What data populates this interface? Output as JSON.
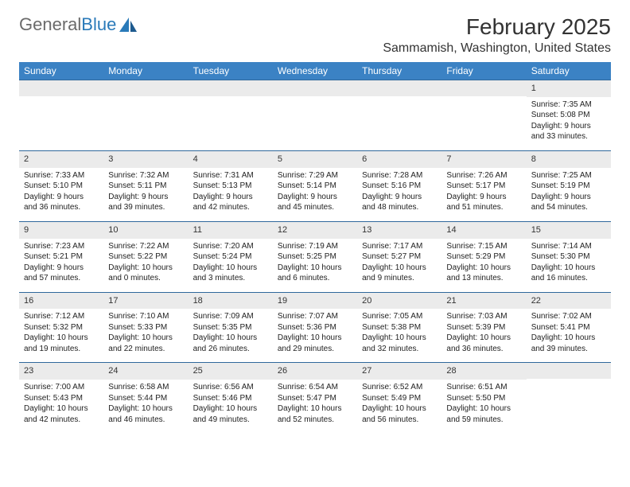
{
  "logo": {
    "word1": "General",
    "word2": "Blue"
  },
  "header": {
    "month_title": "February 2025",
    "location": "Sammamish, Washington, United States"
  },
  "colors": {
    "header_bg": "#3b82c4",
    "header_text": "#ffffff",
    "daynum_bg": "#ebebeb",
    "row_border": "#30689c",
    "logo_grey": "#6b6b6b",
    "logo_blue": "#2a7ab9",
    "text": "#222222"
  },
  "day_labels": [
    "Sunday",
    "Monday",
    "Tuesday",
    "Wednesday",
    "Thursday",
    "Friday",
    "Saturday"
  ],
  "weeks": [
    [
      {
        "n": "",
        "sunrise": "",
        "sunset": "",
        "daylight": ""
      },
      {
        "n": "",
        "sunrise": "",
        "sunset": "",
        "daylight": ""
      },
      {
        "n": "",
        "sunrise": "",
        "sunset": "",
        "daylight": ""
      },
      {
        "n": "",
        "sunrise": "",
        "sunset": "",
        "daylight": ""
      },
      {
        "n": "",
        "sunrise": "",
        "sunset": "",
        "daylight": ""
      },
      {
        "n": "",
        "sunrise": "",
        "sunset": "",
        "daylight": ""
      },
      {
        "n": "1",
        "sunrise": "Sunrise: 7:35 AM",
        "sunset": "Sunset: 5:08 PM",
        "daylight": "Daylight: 9 hours and 33 minutes."
      }
    ],
    [
      {
        "n": "2",
        "sunrise": "Sunrise: 7:33 AM",
        "sunset": "Sunset: 5:10 PM",
        "daylight": "Daylight: 9 hours and 36 minutes."
      },
      {
        "n": "3",
        "sunrise": "Sunrise: 7:32 AM",
        "sunset": "Sunset: 5:11 PM",
        "daylight": "Daylight: 9 hours and 39 minutes."
      },
      {
        "n": "4",
        "sunrise": "Sunrise: 7:31 AM",
        "sunset": "Sunset: 5:13 PM",
        "daylight": "Daylight: 9 hours and 42 minutes."
      },
      {
        "n": "5",
        "sunrise": "Sunrise: 7:29 AM",
        "sunset": "Sunset: 5:14 PM",
        "daylight": "Daylight: 9 hours and 45 minutes."
      },
      {
        "n": "6",
        "sunrise": "Sunrise: 7:28 AM",
        "sunset": "Sunset: 5:16 PM",
        "daylight": "Daylight: 9 hours and 48 minutes."
      },
      {
        "n": "7",
        "sunrise": "Sunrise: 7:26 AM",
        "sunset": "Sunset: 5:17 PM",
        "daylight": "Daylight: 9 hours and 51 minutes."
      },
      {
        "n": "8",
        "sunrise": "Sunrise: 7:25 AM",
        "sunset": "Sunset: 5:19 PM",
        "daylight": "Daylight: 9 hours and 54 minutes."
      }
    ],
    [
      {
        "n": "9",
        "sunrise": "Sunrise: 7:23 AM",
        "sunset": "Sunset: 5:21 PM",
        "daylight": "Daylight: 9 hours and 57 minutes."
      },
      {
        "n": "10",
        "sunrise": "Sunrise: 7:22 AM",
        "sunset": "Sunset: 5:22 PM",
        "daylight": "Daylight: 10 hours and 0 minutes."
      },
      {
        "n": "11",
        "sunrise": "Sunrise: 7:20 AM",
        "sunset": "Sunset: 5:24 PM",
        "daylight": "Daylight: 10 hours and 3 minutes."
      },
      {
        "n": "12",
        "sunrise": "Sunrise: 7:19 AM",
        "sunset": "Sunset: 5:25 PM",
        "daylight": "Daylight: 10 hours and 6 minutes."
      },
      {
        "n": "13",
        "sunrise": "Sunrise: 7:17 AM",
        "sunset": "Sunset: 5:27 PM",
        "daylight": "Daylight: 10 hours and 9 minutes."
      },
      {
        "n": "14",
        "sunrise": "Sunrise: 7:15 AM",
        "sunset": "Sunset: 5:29 PM",
        "daylight": "Daylight: 10 hours and 13 minutes."
      },
      {
        "n": "15",
        "sunrise": "Sunrise: 7:14 AM",
        "sunset": "Sunset: 5:30 PM",
        "daylight": "Daylight: 10 hours and 16 minutes."
      }
    ],
    [
      {
        "n": "16",
        "sunrise": "Sunrise: 7:12 AM",
        "sunset": "Sunset: 5:32 PM",
        "daylight": "Daylight: 10 hours and 19 minutes."
      },
      {
        "n": "17",
        "sunrise": "Sunrise: 7:10 AM",
        "sunset": "Sunset: 5:33 PM",
        "daylight": "Daylight: 10 hours and 22 minutes."
      },
      {
        "n": "18",
        "sunrise": "Sunrise: 7:09 AM",
        "sunset": "Sunset: 5:35 PM",
        "daylight": "Daylight: 10 hours and 26 minutes."
      },
      {
        "n": "19",
        "sunrise": "Sunrise: 7:07 AM",
        "sunset": "Sunset: 5:36 PM",
        "daylight": "Daylight: 10 hours and 29 minutes."
      },
      {
        "n": "20",
        "sunrise": "Sunrise: 7:05 AM",
        "sunset": "Sunset: 5:38 PM",
        "daylight": "Daylight: 10 hours and 32 minutes."
      },
      {
        "n": "21",
        "sunrise": "Sunrise: 7:03 AM",
        "sunset": "Sunset: 5:39 PM",
        "daylight": "Daylight: 10 hours and 36 minutes."
      },
      {
        "n": "22",
        "sunrise": "Sunrise: 7:02 AM",
        "sunset": "Sunset: 5:41 PM",
        "daylight": "Daylight: 10 hours and 39 minutes."
      }
    ],
    [
      {
        "n": "23",
        "sunrise": "Sunrise: 7:00 AM",
        "sunset": "Sunset: 5:43 PM",
        "daylight": "Daylight: 10 hours and 42 minutes."
      },
      {
        "n": "24",
        "sunrise": "Sunrise: 6:58 AM",
        "sunset": "Sunset: 5:44 PM",
        "daylight": "Daylight: 10 hours and 46 minutes."
      },
      {
        "n": "25",
        "sunrise": "Sunrise: 6:56 AM",
        "sunset": "Sunset: 5:46 PM",
        "daylight": "Daylight: 10 hours and 49 minutes."
      },
      {
        "n": "26",
        "sunrise": "Sunrise: 6:54 AM",
        "sunset": "Sunset: 5:47 PM",
        "daylight": "Daylight: 10 hours and 52 minutes."
      },
      {
        "n": "27",
        "sunrise": "Sunrise: 6:52 AM",
        "sunset": "Sunset: 5:49 PM",
        "daylight": "Daylight: 10 hours and 56 minutes."
      },
      {
        "n": "28",
        "sunrise": "Sunrise: 6:51 AM",
        "sunset": "Sunset: 5:50 PM",
        "daylight": "Daylight: 10 hours and 59 minutes."
      },
      {
        "n": "",
        "sunrise": "",
        "sunset": "",
        "daylight": ""
      }
    ]
  ]
}
